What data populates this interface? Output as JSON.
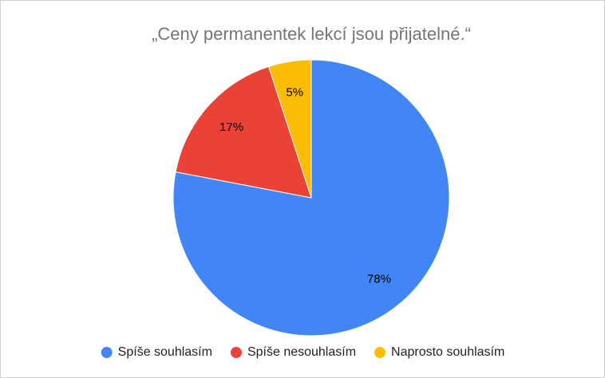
{
  "chart_data": {
    "type": "pie",
    "title": "„Ceny permanentek lekcí jsou přijatelné.“",
    "categories": [
      "Spíše souhlasím",
      "Spíše nesouhlasím",
      "Naprosto souhlasím"
    ],
    "values": [
      78,
      17,
      5
    ],
    "value_labels": [
      "78%",
      "17%",
      "5%"
    ],
    "colors": [
      "#4285f4",
      "#ea4335",
      "#fbbc04"
    ],
    "legend": "bottom"
  }
}
